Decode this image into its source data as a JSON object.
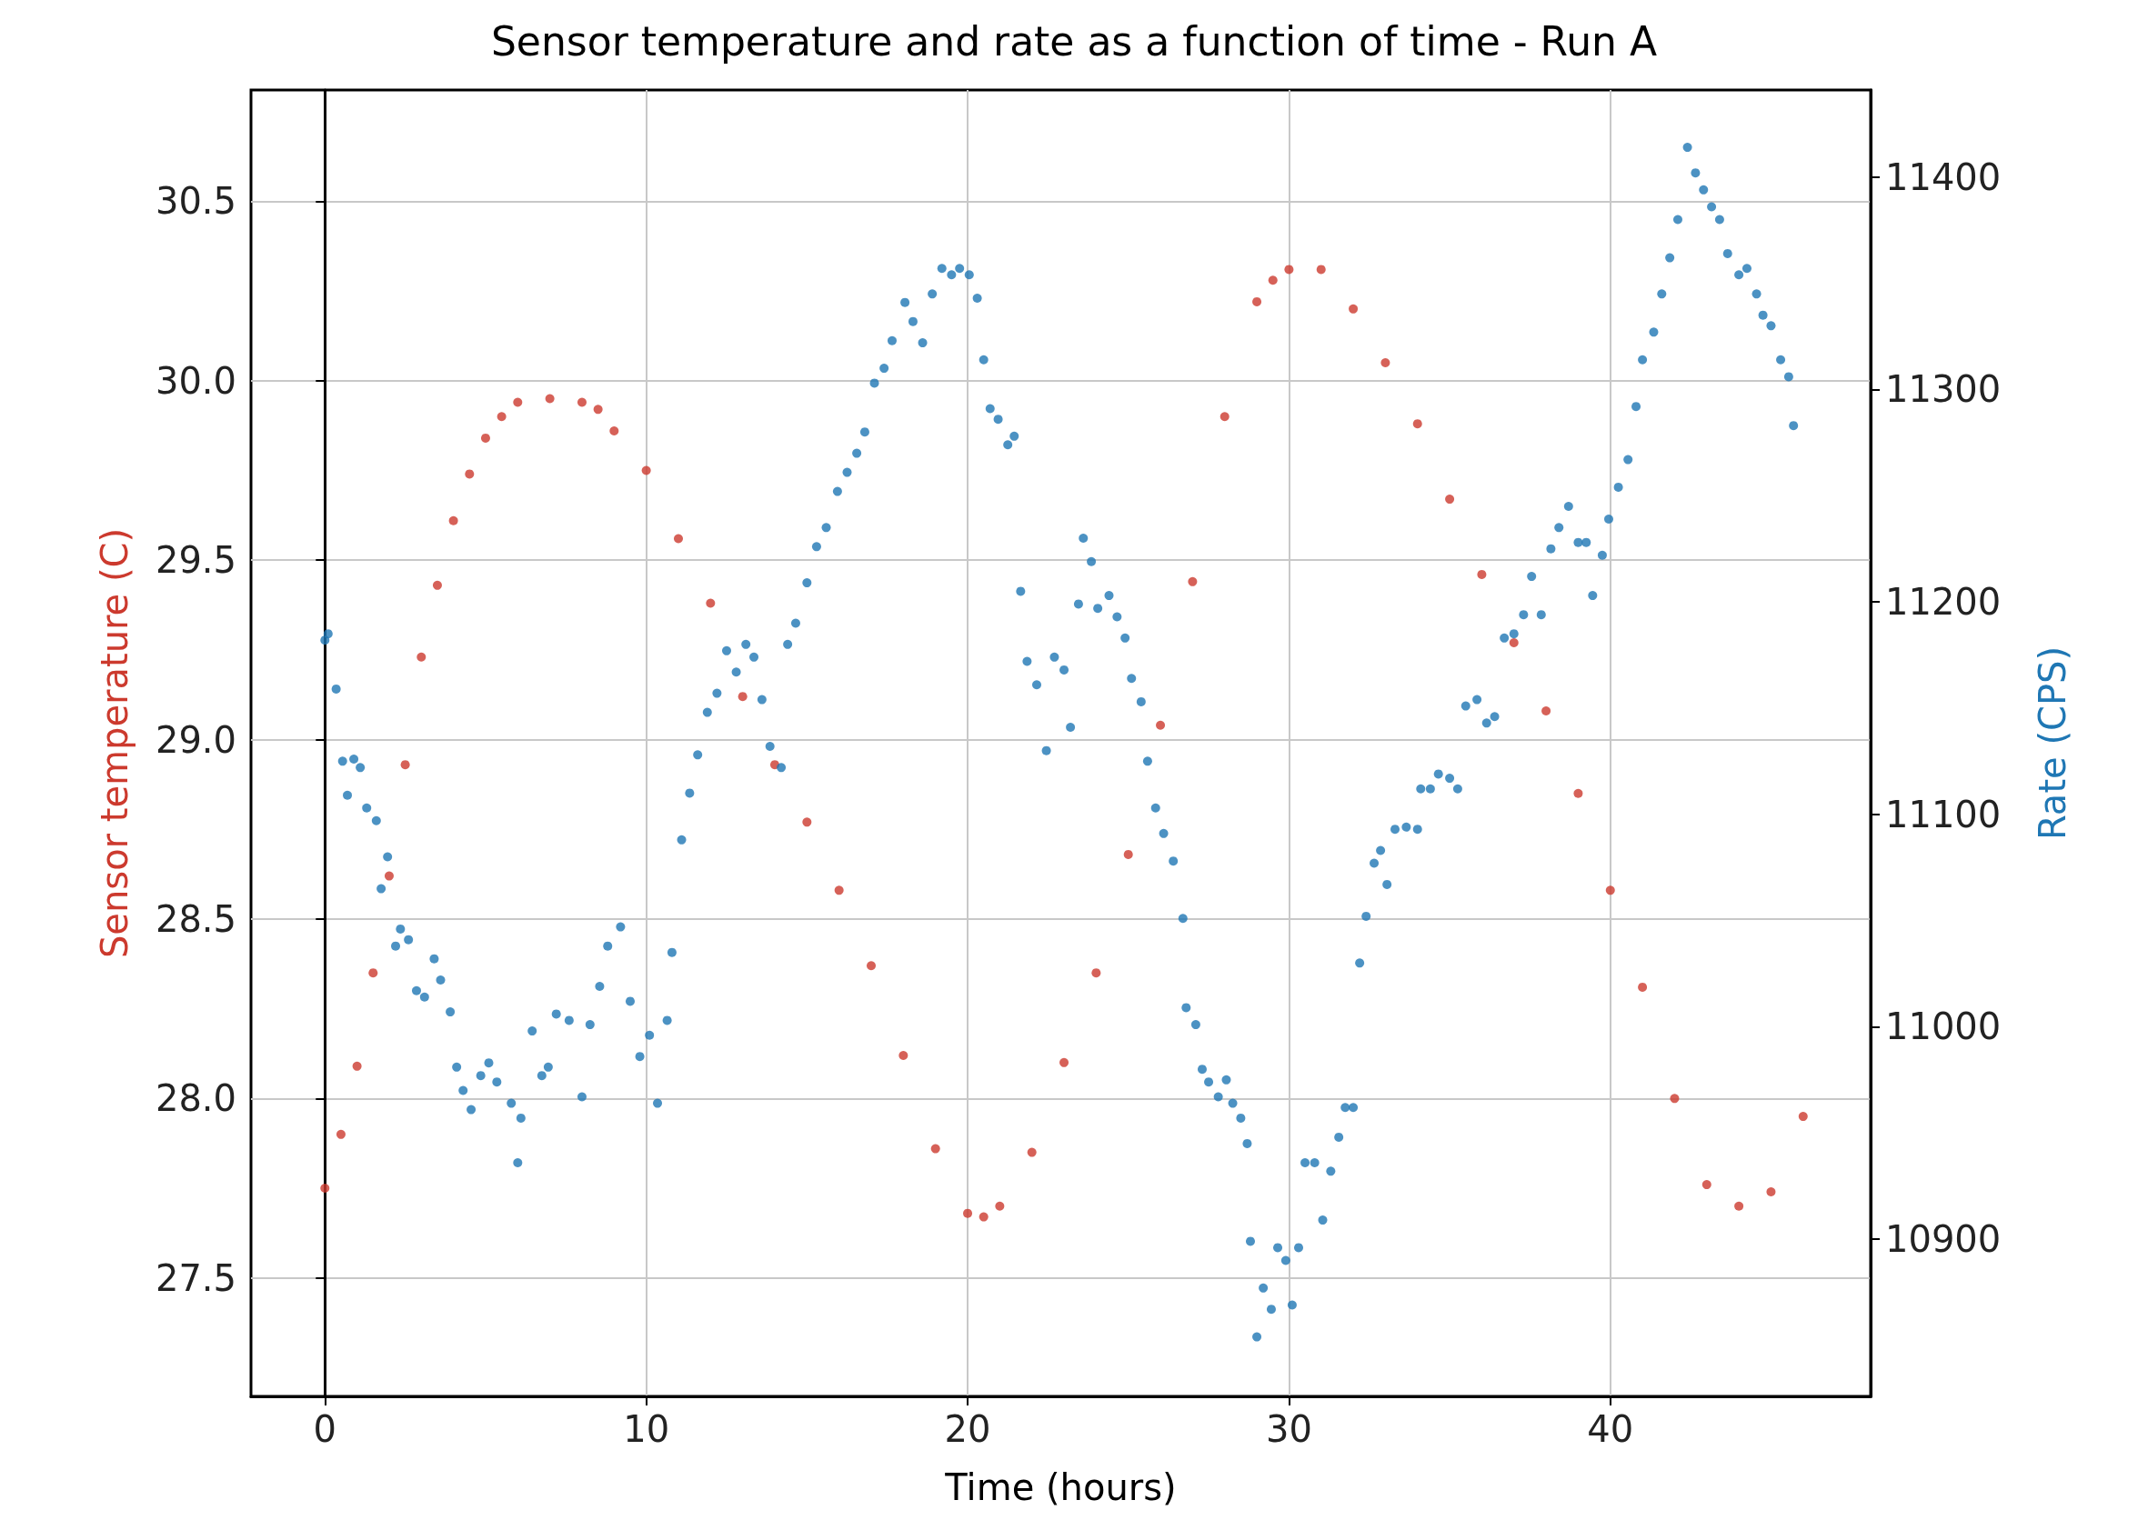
{
  "chart_data": {
    "type": "scatter",
    "title": "Sensor temperature and rate as a function of time - Run A",
    "xlabel": "Time (hours)",
    "ylabel": "Sensor temperature (C)",
    "y2label": "Rate (CPS)",
    "xlim": [
      -2.3,
      48.1
    ],
    "xticks": [
      0,
      10,
      20,
      30,
      40
    ],
    "ylim": [
      27.17,
      30.81
    ],
    "yticks": [
      27.5,
      {
        "value": 28,
        "label": "28.0"
      },
      28.5,
      {
        "value": 29,
        "label": "29.0"
      },
      29.5,
      {
        "value": 30,
        "label": "30.0"
      },
      30.5
    ],
    "y2lim": [
      10826,
      11441
    ],
    "y2ticks": [
      10900,
      11000,
      11100,
      11200,
      11300,
      11400
    ],
    "grid": true,
    "marker": "circle",
    "series": [
      {
        "color": "#cc3a2e",
        "x": [
          0,
          0.5,
          1,
          1.5,
          2,
          2.5,
          3,
          3.5,
          4,
          4.5,
          5,
          5.5,
          6,
          7,
          8,
          8.5,
          9,
          10,
          11,
          12,
          13,
          14,
          15,
          16,
          17,
          18,
          19,
          20,
          20.5,
          21,
          22,
          23,
          24,
          25,
          26,
          27,
          28,
          29,
          29.5,
          30,
          31,
          32,
          33,
          34,
          35,
          36,
          37,
          38,
          39,
          40,
          41,
          42,
          43,
          44,
          45,
          46
        ],
        "values": [
          27.75,
          27.9,
          28.09,
          28.35,
          28.62,
          28.93,
          29.23,
          29.43,
          29.61,
          29.74,
          29.84,
          29.9,
          29.94,
          29.95,
          29.94,
          29.92,
          29.86,
          29.75,
          29.56,
          29.38,
          29.12,
          28.93,
          28.77,
          28.58,
          28.37,
          28.12,
          27.86,
          27.68,
          27.67,
          27.7,
          27.85,
          28.1,
          28.35,
          28.68,
          29.04,
          29.44,
          29.9,
          30.22,
          30.28,
          30.31,
          30.31,
          30.2,
          30.05,
          29.88,
          29.67,
          29.46,
          29.27,
          29.08,
          28.85,
          28.58,
          28.31,
          28.0,
          27.76,
          27.7,
          27.74,
          27.95
        ]
      },
      {
        "color": "#1f77b4",
        "axis": "y2",
        "x": [
          0,
          0.1,
          0.35,
          0.55,
          0.7,
          0.9,
          1.1,
          1.3,
          1.6,
          1.75,
          1.95,
          2.2,
          2.35,
          2.6,
          2.85,
          3.1,
          3.4,
          3.6,
          3.9,
          4.1,
          4.3,
          4.55,
          4.85,
          5.1,
          5.35,
          5.8,
          6.0,
          6.1,
          6.45,
          6.75,
          6.95,
          7.2,
          7.6,
          8.0,
          8.25,
          8.55,
          8.8,
          9.2,
          9.5,
          9.8,
          10.1,
          10.35,
          10.65,
          10.8,
          11.1,
          11.35,
          11.6,
          11.9,
          12.2,
          12.5,
          12.8,
          13.1,
          13.35,
          13.6,
          13.85,
          14.2,
          14.4,
          14.65,
          15,
          15.3,
          15.6,
          15.95,
          16.25,
          16.55,
          16.8,
          17.1,
          17.4,
          17.65,
          18.05,
          18.3,
          18.6,
          18.9,
          19.2,
          19.5,
          19.75,
          20.05,
          20.3,
          20.5,
          20.7,
          20.95,
          21.25,
          21.45,
          21.65,
          21.85,
          22.15,
          22.45,
          22.7,
          23.0,
          23.2,
          23.45,
          23.6,
          23.85,
          24.05,
          24.4,
          24.65,
          24.9,
          25.1,
          25.4,
          25.6,
          25.85,
          26.1,
          26.4,
          26.7,
          26.8,
          27.1,
          27.3,
          27.5,
          27.8,
          28.05,
          28.25,
          28.5,
          28.7,
          28.8,
          29.0,
          29.2,
          29.45,
          29.65,
          29.9,
          30.1,
          30.3,
          30.5,
          30.8,
          31.05,
          31.3,
          31.55,
          31.75,
          32.0,
          32.2,
          32.4,
          32.65,
          32.85,
          33.05,
          33.3,
          33.65,
          34.0,
          34.1,
          34.4,
          34.65,
          35.0,
          35.25,
          35.5,
          35.85,
          36.15,
          36.4,
          36.7,
          37.0,
          37.3,
          37.55,
          37.85,
          38.15,
          38.4,
          38.7,
          39.0,
          39.25,
          39.45,
          39.75,
          39.95,
          40.25,
          40.55,
          40.8,
          41.0,
          41.35,
          41.6,
          41.85,
          42.1,
          42.4,
          42.65,
          42.9,
          43.15,
          43.4,
          43.65,
          44.0,
          44.25,
          44.55,
          44.75,
          45.0,
          45.3,
          45.55,
          45.7
        ],
        "values": [
          11182,
          11185,
          11159,
          11125,
          11109,
          11126,
          11122,
          11103,
          11097,
          11065,
          11080,
          11038,
          11046,
          11041,
          11017,
          11014,
          11032,
          11022,
          11007,
          10981,
          10970,
          10961,
          10977,
          10983,
          10974,
          10964,
          10936,
          10957,
          10998,
          10977,
          10981,
          11006,
          11003,
          10967,
          11001,
          11019,
          11038,
          11047,
          11012,
          10986,
          10996,
          10964,
          11003,
          11035,
          11088,
          11110,
          11128,
          11148,
          11157,
          11177,
          11167,
          11180,
          11174,
          11154,
          11132,
          11122,
          11180,
          11190,
          11209,
          11226,
          11235,
          11252,
          11261,
          11270,
          11280,
          11303,
          11310,
          11323,
          11341,
          11332,
          11322,
          11345,
          11357,
          11354,
          11357,
          11354,
          11343,
          11314,
          11291,
          11286,
          11274,
          11278,
          11205,
          11172,
          11161,
          11130,
          11174,
          11168,
          11141,
          11199,
          11230,
          11219,
          11197,
          11203,
          11193,
          11183,
          11164,
          11153,
          11125,
          11103,
          11091,
          11078,
          11051,
          11009,
          11001,
          10980,
          10974,
          10967,
          10975,
          10964,
          10957,
          10945,
          10899,
          10854,
          10877,
          10867,
          10896,
          10890,
          10869,
          10896,
          10936,
          10936,
          10909,
          10932,
          10948,
          10962,
          10962,
          11030,
          11052,
          11077,
          11083,
          11067,
          11093,
          11094,
          11093,
          11112,
          11112,
          11119,
          11117,
          11112,
          11151,
          11154,
          11143,
          11146,
          11183,
          11185,
          11194,
          11212,
          11194,
          11225,
          11235,
          11245,
          11228,
          11228,
          11203,
          11222,
          11239,
          11254,
          11267,
          11292,
          11314,
          11327,
          11345,
          11362,
          11380,
          11414,
          11402,
          11394,
          11386,
          11380,
          11364,
          11354,
          11357,
          11345,
          11335,
          11330,
          11314,
          11306,
          11283
        ]
      }
    ]
  }
}
